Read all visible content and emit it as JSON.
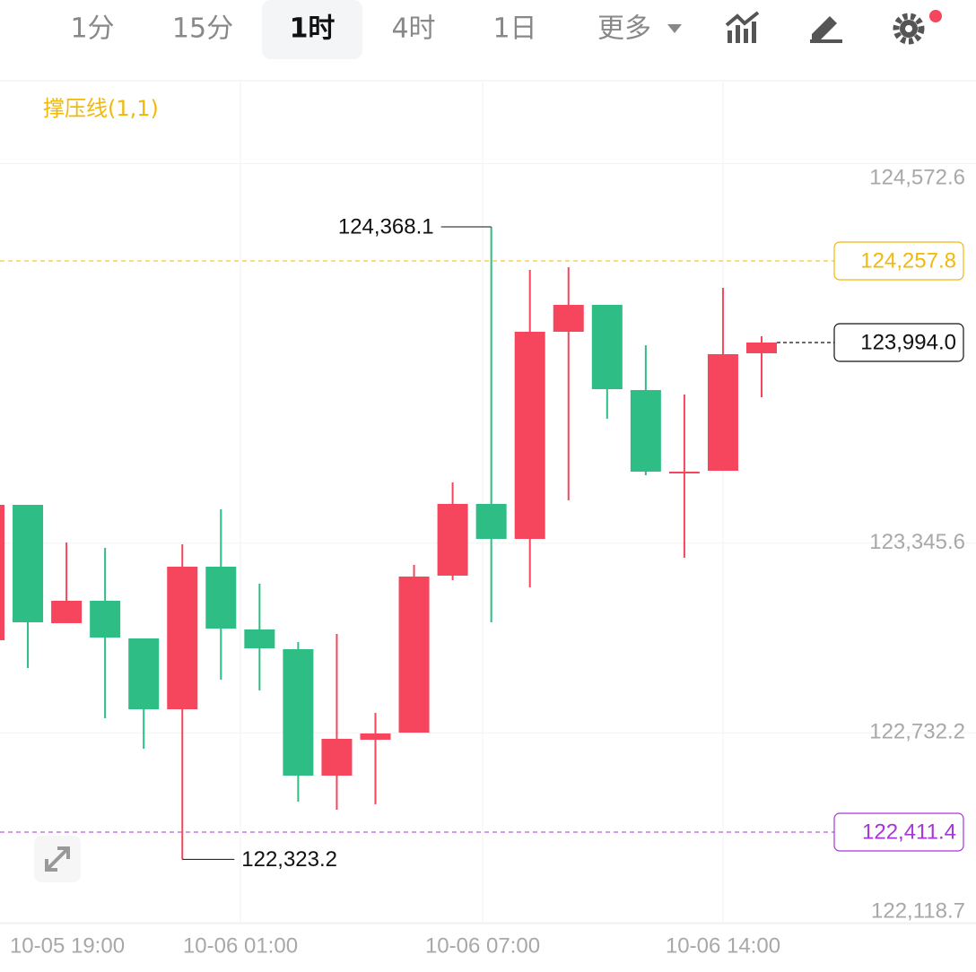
{
  "toolbar": {
    "tabs": [
      "1分",
      "15分",
      "1时",
      "4时",
      "1日",
      "更多"
    ],
    "active": 2
  },
  "chart_data": {
    "type": "candlestick",
    "indicator": "撑压线(1,1)",
    "up_color": "#f6465d",
    "down_color": "#2ebd85",
    "open": [
      123031.7,
      123469.4,
      123086.8,
      123159.2,
      123037.5,
      122808.5,
      123269.4,
      123066.5,
      123002.7,
      122594.0,
      122710.0,
      122733.1,
      123240.4,
      123472.3,
      123359.2,
      124028.8,
      124115.8,
      123840.4,
      123576.6,
      123579.5,
      123959.3
    ],
    "high": [
      123492.6,
      123469.4,
      123347.7,
      123330.3,
      123037.5,
      123341.9,
      123454.9,
      123214.3,
      123025.9,
      123052.0,
      122796.9,
      123275.2,
      123541.9,
      124368.1,
      124228.8,
      124237.5,
      124115.8,
      123985.3,
      123825.9,
      124170.9,
      124014.3
    ],
    "low": [
      123014.3,
      122941.8,
      123086.8,
      122779.5,
      122681.0,
      122323.2,
      122904.2,
      122869.4,
      122510.0,
      122483.9,
      122501.3,
      122733.1,
      123225.9,
      123089.7,
      123202.7,
      123483.9,
      123747.7,
      123565.0,
      123298.4,
      123579.5,
      123817.2
    ],
    "close": [
      123469.4,
      123089.7,
      123159.2,
      123040.4,
      122808.5,
      123269.4,
      123069.4,
      123005.6,
      122594.0,
      122712.9,
      122730.2,
      123237.5,
      123472.3,
      123359.2,
      124028.8,
      124115.8,
      123843.3,
      123576.6,
      123576.6,
      123956.4,
      123994.0
    ],
    "xtick_labels": [
      "10-05 19:00",
      "10-06 01:00",
      "10-06 07:00",
      "10-06 14:00"
    ],
    "ylim": [
      122115.7,
      124840.4
    ],
    "yticks": [
      {
        "value": 124572.6,
        "label": "124,572.6"
      },
      {
        "value": 123345.6,
        "label": "123,345.6"
      },
      {
        "value": 122732.2,
        "label": "122,732.2"
      },
      {
        "value": 122118.7,
        "label": "122,118.7"
      }
    ],
    "price_lines": [
      {
        "value": 124257.8,
        "label": "124,257.8",
        "color": "#f0b90b"
      },
      {
        "value": 123994.0,
        "label": "123,994.0",
        "color": "#111111"
      },
      {
        "value": 122411.4,
        "label": "122,411.4",
        "color": "#a636d6"
      }
    ],
    "annotations": [
      {
        "value": 124368.1,
        "label": "124,368.1",
        "index": 13
      },
      {
        "value": 122323.2,
        "label": "122,323.2",
        "index": 5
      }
    ]
  }
}
